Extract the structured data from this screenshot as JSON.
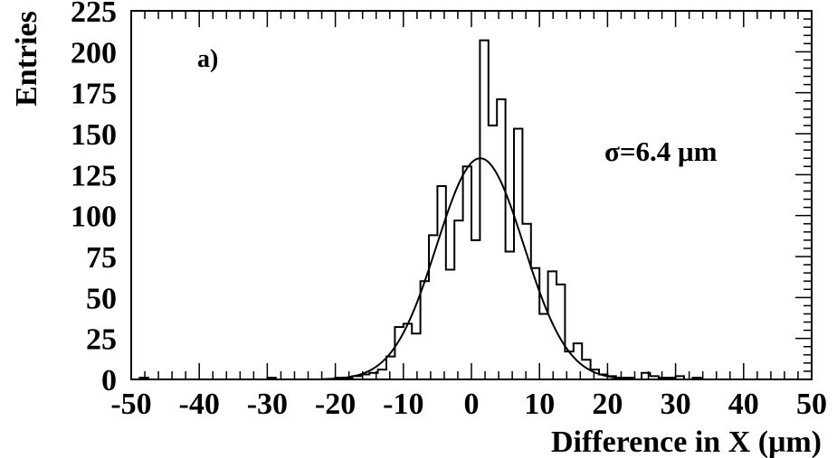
{
  "chart_data": {
    "type": "bar",
    "histogram": true,
    "panel_label": "a)",
    "annotation": "σ=6.4 μm",
    "xlabel": "Difference in X (μm)",
    "ylabel": "Entries",
    "xlim": [
      -50,
      50
    ],
    "ylim": [
      0,
      225
    ],
    "bin_width": 1.25,
    "x_ticks": [
      "-50",
      "-40",
      "-30",
      "-20",
      "-10",
      "0",
      "10",
      "20",
      "30",
      "40",
      "50"
    ],
    "y_ticks": [
      "0",
      "25",
      "50",
      "75",
      "100",
      "125",
      "150",
      "175",
      "200",
      "225"
    ],
    "bins": [
      {
        "x0": -50.0,
        "v": 0
      },
      {
        "x0": -48.75,
        "v": 1
      },
      {
        "x0": -47.5,
        "v": 0
      },
      {
        "x0": -46.25,
        "v": 0
      },
      {
        "x0": -45.0,
        "v": 0
      },
      {
        "x0": -43.75,
        "v": 0
      },
      {
        "x0": -42.5,
        "v": 0
      },
      {
        "x0": -41.25,
        "v": 0
      },
      {
        "x0": -40.0,
        "v": 0
      },
      {
        "x0": -38.75,
        "v": 0
      },
      {
        "x0": -37.5,
        "v": 0
      },
      {
        "x0": -36.25,
        "v": 0
      },
      {
        "x0": -35.0,
        "v": 0
      },
      {
        "x0": -33.75,
        "v": 0
      },
      {
        "x0": -32.5,
        "v": 0
      },
      {
        "x0": -31.25,
        "v": 0
      },
      {
        "x0": -30.0,
        "v": 1
      },
      {
        "x0": -28.75,
        "v": 0
      },
      {
        "x0": -27.5,
        "v": 0
      },
      {
        "x0": -26.25,
        "v": 0
      },
      {
        "x0": -25.0,
        "v": 0
      },
      {
        "x0": -23.75,
        "v": 0
      },
      {
        "x0": -22.5,
        "v": 0
      },
      {
        "x0": -21.25,
        "v": 0
      },
      {
        "x0": -20.0,
        "v": 1
      },
      {
        "x0": -18.75,
        "v": 1
      },
      {
        "x0": -17.5,
        "v": 2
      },
      {
        "x0": -16.25,
        "v": 3
      },
      {
        "x0": -15.0,
        "v": 4
      },
      {
        "x0": -13.75,
        "v": 6
      },
      {
        "x0": -12.5,
        "v": 14
      },
      {
        "x0": -11.25,
        "v": 32
      },
      {
        "x0": -10.0,
        "v": 34
      },
      {
        "x0": -8.75,
        "v": 28
      },
      {
        "x0": -7.5,
        "v": 60
      },
      {
        "x0": -6.25,
        "v": 88
      },
      {
        "x0": -5.0,
        "v": 118
      },
      {
        "x0": -3.75,
        "v": 67
      },
      {
        "x0": -2.5,
        "v": 97
      },
      {
        "x0": -1.25,
        "v": 130
      },
      {
        "x0": 0.0,
        "v": 85
      },
      {
        "x0": 1.25,
        "v": 207
      },
      {
        "x0": 2.5,
        "v": 155
      },
      {
        "x0": 3.75,
        "v": 171
      },
      {
        "x0": 5.0,
        "v": 78
      },
      {
        "x0": 6.25,
        "v": 153
      },
      {
        "x0": 7.5,
        "v": 95
      },
      {
        "x0": 8.75,
        "v": 68
      },
      {
        "x0": 10.0,
        "v": 40
      },
      {
        "x0": 11.25,
        "v": 66
      },
      {
        "x0": 12.5,
        "v": 58
      },
      {
        "x0": 13.75,
        "v": 17
      },
      {
        "x0": 15.0,
        "v": 22
      },
      {
        "x0": 16.25,
        "v": 12
      },
      {
        "x0": 17.5,
        "v": 6
      },
      {
        "x0": 18.75,
        "v": 3
      },
      {
        "x0": 20.0,
        "v": 2
      },
      {
        "x0": 21.25,
        "v": 1
      },
      {
        "x0": 22.5,
        "v": 1
      },
      {
        "x0": 23.75,
        "v": 0
      },
      {
        "x0": 25.0,
        "v": 4
      },
      {
        "x0": 26.25,
        "v": 2
      },
      {
        "x0": 27.5,
        "v": 1
      },
      {
        "x0": 28.75,
        "v": 1
      },
      {
        "x0": 30.0,
        "v": 2
      },
      {
        "x0": 31.25,
        "v": 0
      },
      {
        "x0": 32.5,
        "v": 1
      },
      {
        "x0": 33.75,
        "v": 0
      },
      {
        "x0": 35.0,
        "v": 0
      },
      {
        "x0": 36.25,
        "v": 0
      },
      {
        "x0": 37.5,
        "v": 0
      },
      {
        "x0": 38.75,
        "v": 0
      },
      {
        "x0": 40.0,
        "v": 0
      },
      {
        "x0": 41.25,
        "v": 0
      },
      {
        "x0": 42.5,
        "v": 0
      },
      {
        "x0": 43.75,
        "v": 0
      },
      {
        "x0": 45.0,
        "v": 0
      },
      {
        "x0": 46.25,
        "v": 0
      },
      {
        "x0": 47.5,
        "v": 0
      },
      {
        "x0": 48.75,
        "v": 0
      }
    ],
    "fit": {
      "type": "gaussian",
      "amplitude": 135,
      "mean": 1.3,
      "sigma": 6.4
    },
    "grid": false
  }
}
